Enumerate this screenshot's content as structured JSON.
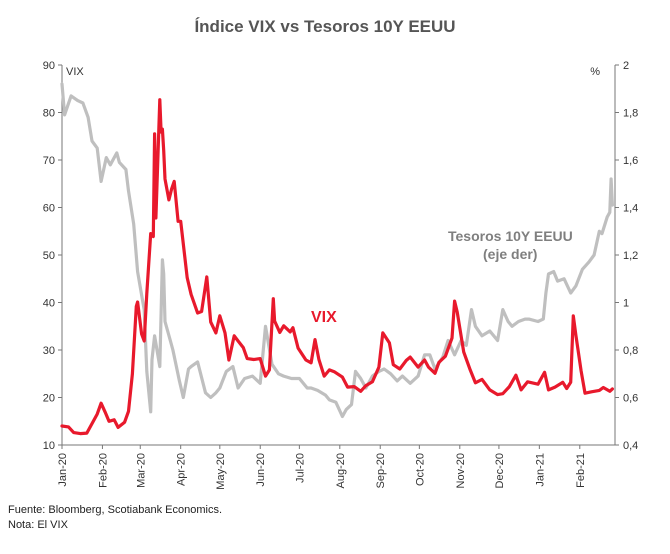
{
  "chart_data": {
    "type": "line",
    "title": "Índice VIX vs Tesoros 10Y EEUU",
    "left_axis": {
      "unit_label": "VIX",
      "range": [
        10,
        90
      ],
      "ticks": [
        "10",
        "20",
        "30",
        "40",
        "50",
        "60",
        "70",
        "80",
        "90"
      ]
    },
    "right_axis": {
      "unit_label": "%",
      "range": [
        0.4,
        2.0
      ],
      "ticks": [
        "0,4",
        "0,6",
        "0,8",
        "1",
        "1,2",
        "1,4",
        "1,6",
        "1,8",
        "2"
      ]
    },
    "x_tick_labels": [
      "Jan-20",
      "Feb-20",
      "Mar-20",
      "Apr-20",
      "May-20",
      "Jun-20",
      "Jul-20",
      "Aug-20",
      "Sep-20",
      "Oct-20",
      "Nov-20",
      "Dec-20",
      "Jan-21",
      "Feb-21"
    ],
    "x_range": [
      "2020-01-01",
      "2021-02-28"
    ],
    "annotations": {
      "vix": "VIX",
      "treasury_line1": "Tesoros 10Y EEUU",
      "treasury_line2": "(eje der)"
    },
    "series": [
      {
        "name": "VIX",
        "axis": "left",
        "color": "#e8192c",
        "points": [
          [
            "2020-01-01",
            14.0
          ],
          [
            "2020-01-06",
            13.8
          ],
          [
            "2020-01-10",
            12.6
          ],
          [
            "2020-01-15",
            12.4
          ],
          [
            "2020-01-20",
            12.5
          ],
          [
            "2020-01-24",
            14.5
          ],
          [
            "2020-01-28",
            16.5
          ],
          [
            "2020-01-31",
            18.8
          ],
          [
            "2020-02-03",
            17.0
          ],
          [
            "2020-02-06",
            15.0
          ],
          [
            "2020-02-10",
            15.3
          ],
          [
            "2020-02-13",
            13.7
          ],
          [
            "2020-02-18",
            14.8
          ],
          [
            "2020-02-21",
            17.1
          ],
          [
            "2020-02-24",
            25.0
          ],
          [
            "2020-02-27",
            39.2
          ],
          [
            "2020-02-28",
            40.1
          ],
          [
            "2020-03-02",
            33.4
          ],
          [
            "2020-03-04",
            31.9
          ],
          [
            "2020-03-06",
            41.9
          ],
          [
            "2020-03-09",
            54.5
          ],
          [
            "2020-03-11",
            53.9
          ],
          [
            "2020-03-12",
            75.5
          ],
          [
            "2020-03-13",
            57.8
          ],
          [
            "2020-03-16",
            82.7
          ],
          [
            "2020-03-17",
            75.9
          ],
          [
            "2020-03-18",
            76.5
          ],
          [
            "2020-03-19",
            72.0
          ],
          [
            "2020-03-20",
            66.0
          ],
          [
            "2020-03-23",
            61.6
          ],
          [
            "2020-03-25",
            63.9
          ],
          [
            "2020-03-27",
            65.5
          ],
          [
            "2020-03-30",
            57.1
          ],
          [
            "2020-04-01",
            57.1
          ],
          [
            "2020-04-06",
            45.2
          ],
          [
            "2020-04-09",
            41.7
          ],
          [
            "2020-04-14",
            37.8
          ],
          [
            "2020-04-17",
            38.1
          ],
          [
            "2020-04-21",
            45.4
          ],
          [
            "2020-04-24",
            35.9
          ],
          [
            "2020-04-28",
            33.6
          ],
          [
            "2020-05-01",
            37.2
          ],
          [
            "2020-05-05",
            33.6
          ],
          [
            "2020-05-08",
            27.9
          ],
          [
            "2020-05-12",
            33.0
          ],
          [
            "2020-05-15",
            31.9
          ],
          [
            "2020-05-19",
            30.5
          ],
          [
            "2020-05-22",
            28.2
          ],
          [
            "2020-05-27",
            28.0
          ],
          [
            "2020-06-01",
            28.2
          ],
          [
            "2020-06-05",
            24.5
          ],
          [
            "2020-06-08",
            25.8
          ],
          [
            "2020-06-11",
            40.8
          ],
          [
            "2020-06-12",
            36.1
          ],
          [
            "2020-06-16",
            33.7
          ],
          [
            "2020-06-19",
            35.1
          ],
          [
            "2020-06-24",
            33.8
          ],
          [
            "2020-06-26",
            34.7
          ],
          [
            "2020-06-30",
            30.4
          ],
          [
            "2020-07-06",
            27.9
          ],
          [
            "2020-07-10",
            27.3
          ],
          [
            "2020-07-13",
            32.2
          ],
          [
            "2020-07-16",
            28.0
          ],
          [
            "2020-07-20",
            24.5
          ],
          [
            "2020-07-24",
            25.8
          ],
          [
            "2020-07-28",
            25.4
          ],
          [
            "2020-08-03",
            24.3
          ],
          [
            "2020-08-07",
            22.2
          ],
          [
            "2020-08-12",
            22.3
          ],
          [
            "2020-08-17",
            21.3
          ],
          [
            "2020-08-21",
            22.5
          ],
          [
            "2020-08-26",
            23.3
          ],
          [
            "2020-08-31",
            26.4
          ],
          [
            "2020-09-03",
            33.6
          ],
          [
            "2020-09-08",
            31.5
          ],
          [
            "2020-09-11",
            26.9
          ],
          [
            "2020-09-16",
            26.0
          ],
          [
            "2020-09-21",
            27.8
          ],
          [
            "2020-09-24",
            28.5
          ],
          [
            "2020-09-30",
            26.4
          ],
          [
            "2020-10-05",
            27.9
          ],
          [
            "2020-10-08",
            26.4
          ],
          [
            "2020-10-13",
            25.1
          ],
          [
            "2020-10-16",
            27.4
          ],
          [
            "2020-10-21",
            28.7
          ],
          [
            "2020-10-26",
            32.5
          ],
          [
            "2020-10-28",
            40.3
          ],
          [
            "2020-10-30",
            38.0
          ],
          [
            "2020-11-04",
            29.6
          ],
          [
            "2020-11-09",
            25.8
          ],
          [
            "2020-11-13",
            23.1
          ],
          [
            "2020-11-18",
            23.8
          ],
          [
            "2020-11-24",
            21.6
          ],
          [
            "2020-11-30",
            20.6
          ],
          [
            "2020-12-04",
            20.8
          ],
          [
            "2020-12-09",
            22.3
          ],
          [
            "2020-12-14",
            24.7
          ],
          [
            "2020-12-18",
            21.6
          ],
          [
            "2020-12-23",
            23.3
          ],
          [
            "2020-12-31",
            22.8
          ],
          [
            "2021-01-05",
            25.3
          ],
          [
            "2021-01-08",
            21.6
          ],
          [
            "2021-01-13",
            22.2
          ],
          [
            "2021-01-19",
            23.2
          ],
          [
            "2021-01-22",
            21.9
          ],
          [
            "2021-01-25",
            23.2
          ],
          [
            "2021-01-27",
            37.2
          ],
          [
            "2021-01-29",
            33.1
          ],
          [
            "2021-02-02",
            25.6
          ],
          [
            "2021-02-05",
            20.9
          ],
          [
            "2021-02-10",
            21.2
          ],
          [
            "2021-02-16",
            21.5
          ],
          [
            "2021-02-19",
            22.1
          ],
          [
            "2021-02-24",
            21.3
          ],
          [
            "2021-02-26",
            21.8
          ]
        ]
      },
      {
        "name": "Tesoros 10Y EEUU",
        "axis": "right",
        "color": "#bfbfbf",
        "points": [
          [
            "2020-01-01",
            1.92
          ],
          [
            "2020-01-03",
            1.79
          ],
          [
            "2020-01-08",
            1.87
          ],
          [
            "2020-01-13",
            1.85
          ],
          [
            "2020-01-17",
            1.84
          ],
          [
            "2020-01-21",
            1.78
          ],
          [
            "2020-01-24",
            1.68
          ],
          [
            "2020-01-28",
            1.65
          ],
          [
            "2020-01-31",
            1.51
          ],
          [
            "2020-02-04",
            1.61
          ],
          [
            "2020-02-07",
            1.58
          ],
          [
            "2020-02-12",
            1.63
          ],
          [
            "2020-02-14",
            1.59
          ],
          [
            "2020-02-19",
            1.56
          ],
          [
            "2020-02-21",
            1.47
          ],
          [
            "2020-02-25",
            1.33
          ],
          [
            "2020-02-28",
            1.13
          ],
          [
            "2020-03-03",
            1.0
          ],
          [
            "2020-03-04",
            0.97
          ],
          [
            "2020-03-06",
            0.71
          ],
          [
            "2020-03-09",
            0.54
          ],
          [
            "2020-03-10",
            0.76
          ],
          [
            "2020-03-12",
            0.86
          ],
          [
            "2020-03-16",
            0.73
          ],
          [
            "2020-03-18",
            1.18
          ],
          [
            "2020-03-19",
            1.12
          ],
          [
            "2020-03-20",
            0.92
          ],
          [
            "2020-03-24",
            0.84
          ],
          [
            "2020-03-26",
            0.8
          ],
          [
            "2020-03-31",
            0.67
          ],
          [
            "2020-04-03",
            0.6
          ],
          [
            "2020-04-07",
            0.72
          ],
          [
            "2020-04-09",
            0.73
          ],
          [
            "2020-04-14",
            0.75
          ],
          [
            "2020-04-20",
            0.62
          ],
          [
            "2020-04-24",
            0.6
          ],
          [
            "2020-04-28",
            0.62
          ],
          [
            "2020-05-01",
            0.64
          ],
          [
            "2020-05-06",
            0.71
          ],
          [
            "2020-05-11",
            0.73
          ],
          [
            "2020-05-15",
            0.64
          ],
          [
            "2020-05-20",
            0.68
          ],
          [
            "2020-05-26",
            0.69
          ],
          [
            "2020-06-01",
            0.66
          ],
          [
            "2020-06-05",
            0.9
          ],
          [
            "2020-06-10",
            0.74
          ],
          [
            "2020-06-15",
            0.7
          ],
          [
            "2020-06-19",
            0.69
          ],
          [
            "2020-06-25",
            0.68
          ],
          [
            "2020-07-01",
            0.68
          ],
          [
            "2020-07-07",
            0.64
          ],
          [
            "2020-07-10",
            0.64
          ],
          [
            "2020-07-15",
            0.63
          ],
          [
            "2020-07-21",
            0.61
          ],
          [
            "2020-07-24",
            0.59
          ],
          [
            "2020-07-29",
            0.58
          ],
          [
            "2020-08-03",
            0.52
          ],
          [
            "2020-08-06",
            0.55
          ],
          [
            "2020-08-10",
            0.57
          ],
          [
            "2020-08-13",
            0.71
          ],
          [
            "2020-08-17",
            0.68
          ],
          [
            "2020-08-21",
            0.64
          ],
          [
            "2020-08-26",
            0.69
          ],
          [
            "2020-08-31",
            0.71
          ],
          [
            "2020-09-04",
            0.72
          ],
          [
            "2020-09-09",
            0.7
          ],
          [
            "2020-09-14",
            0.67
          ],
          [
            "2020-09-18",
            0.69
          ],
          [
            "2020-09-24",
            0.66
          ],
          [
            "2020-09-30",
            0.69
          ],
          [
            "2020-10-05",
            0.78
          ],
          [
            "2020-10-09",
            0.78
          ],
          [
            "2020-10-13",
            0.72
          ],
          [
            "2020-10-19",
            0.77
          ],
          [
            "2020-10-23",
            0.84
          ],
          [
            "2020-10-28",
            0.78
          ],
          [
            "2020-11-02",
            0.84
          ],
          [
            "2020-11-06",
            0.82
          ],
          [
            "2020-11-10",
            0.97
          ],
          [
            "2020-11-13",
            0.9
          ],
          [
            "2020-11-18",
            0.86
          ],
          [
            "2020-11-24",
            0.88
          ],
          [
            "2020-11-30",
            0.84
          ],
          [
            "2020-12-04",
            0.97
          ],
          [
            "2020-12-08",
            0.92
          ],
          [
            "2020-12-11",
            0.9
          ],
          [
            "2020-12-16",
            0.92
          ],
          [
            "2020-12-21",
            0.93
          ],
          [
            "2020-12-24",
            0.93
          ],
          [
            "2020-12-31",
            0.92
          ],
          [
            "2021-01-04",
            0.93
          ],
          [
            "2021-01-06",
            1.04
          ],
          [
            "2021-01-08",
            1.12
          ],
          [
            "2021-01-12",
            1.13
          ],
          [
            "2021-01-15",
            1.09
          ],
          [
            "2021-01-20",
            1.1
          ],
          [
            "2021-01-25",
            1.04
          ],
          [
            "2021-01-29",
            1.07
          ],
          [
            "2021-02-03",
            1.14
          ],
          [
            "2021-02-08",
            1.17
          ],
          [
            "2021-02-12",
            1.2
          ],
          [
            "2021-02-16",
            1.3
          ],
          [
            "2021-02-18",
            1.29
          ],
          [
            "2021-02-22",
            1.36
          ],
          [
            "2021-02-24",
            1.38
          ],
          [
            "2021-02-25",
            1.52
          ],
          [
            "2021-02-26",
            1.41
          ]
        ]
      }
    ]
  },
  "footer": {
    "source": "Fuente: Bloomberg,  Scotiabank Economics.",
    "note": "Nota: El VIX"
  }
}
